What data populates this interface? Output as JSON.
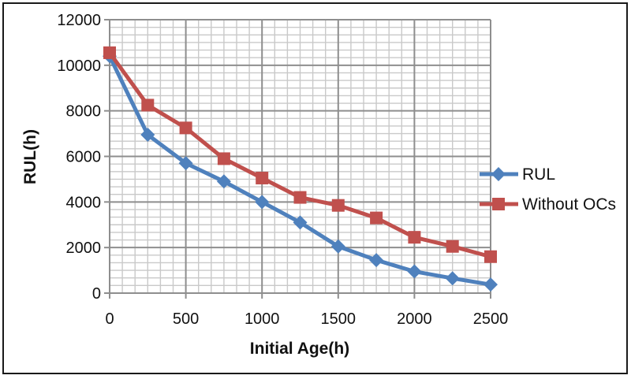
{
  "figure": {
    "border_color": "#1a1a1a",
    "background": "#ffffff"
  },
  "chart_data": {
    "type": "line",
    "title": "",
    "xlabel": "Initial Age(h)",
    "ylabel": "RUL(h)",
    "x": [
      0,
      250,
      500,
      750,
      1000,
      1250,
      1500,
      1750,
      2000,
      2250,
      2500
    ],
    "series": [
      {
        "name": "RUL",
        "marker": "diamond",
        "color": "#4F81BD",
        "values": [
          10400,
          6950,
          5700,
          4900,
          4000,
          3100,
          2050,
          1450,
          950,
          650,
          375
        ]
      },
      {
        "name": "Without OCs",
        "marker": "square",
        "color": "#C0504D",
        "values": [
          10550,
          8250,
          7250,
          5900,
          5050,
          4200,
          3850,
          3300,
          2450,
          2050,
          1600
        ]
      }
    ],
    "xlim": [
      0,
      2500
    ],
    "ylim": [
      0,
      12000
    ],
    "x_ticks": [
      0,
      500,
      1000,
      1500,
      2000,
      2500
    ],
    "y_ticks": [
      0,
      2000,
      4000,
      6000,
      8000,
      10000,
      12000
    ],
    "x_minor_step": 83.3333,
    "y_minor_step": 333.3333,
    "grid": "major+minor",
    "gridline_major_color": "#8e8e8e",
    "gridline_minor_color": "#c9c9c9",
    "axis_color": "#8e8e8e",
    "legend_position": "right"
  }
}
